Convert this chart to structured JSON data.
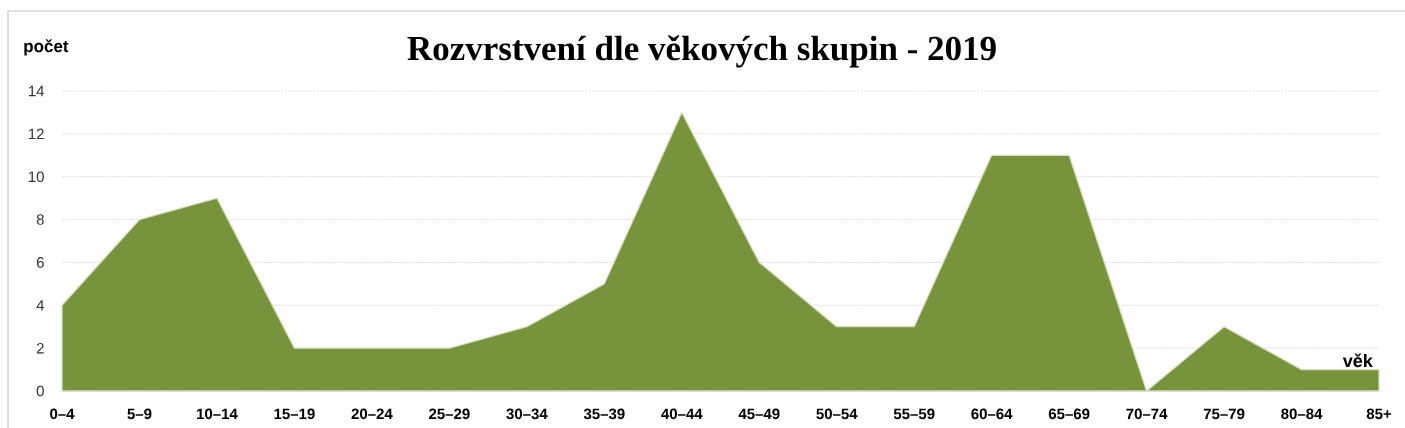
{
  "chart_data": {
    "type": "area",
    "title": "Rozvrstvení dle věkových skupin - 2019",
    "xlabel": "věk",
    "ylabel": "počet",
    "categories": [
      "0–4",
      "5–9",
      "10–14",
      "15–19",
      "20–24",
      "25–29",
      "30–34",
      "35–39",
      "40–44",
      "45–49",
      "50–54",
      "55–59",
      "60–64",
      "65–69",
      "70–74",
      "75–79",
      "80–84",
      "85+"
    ],
    "values": [
      4,
      8,
      9,
      2,
      2,
      2,
      3,
      5,
      13,
      6,
      3,
      3,
      11,
      11,
      0,
      3,
      1,
      1
    ],
    "color": "#77933c",
    "ylim": [
      0,
      14
    ],
    "yticks": [
      0,
      2,
      4,
      6,
      8,
      10,
      12,
      14
    ],
    "grid": "y"
  }
}
